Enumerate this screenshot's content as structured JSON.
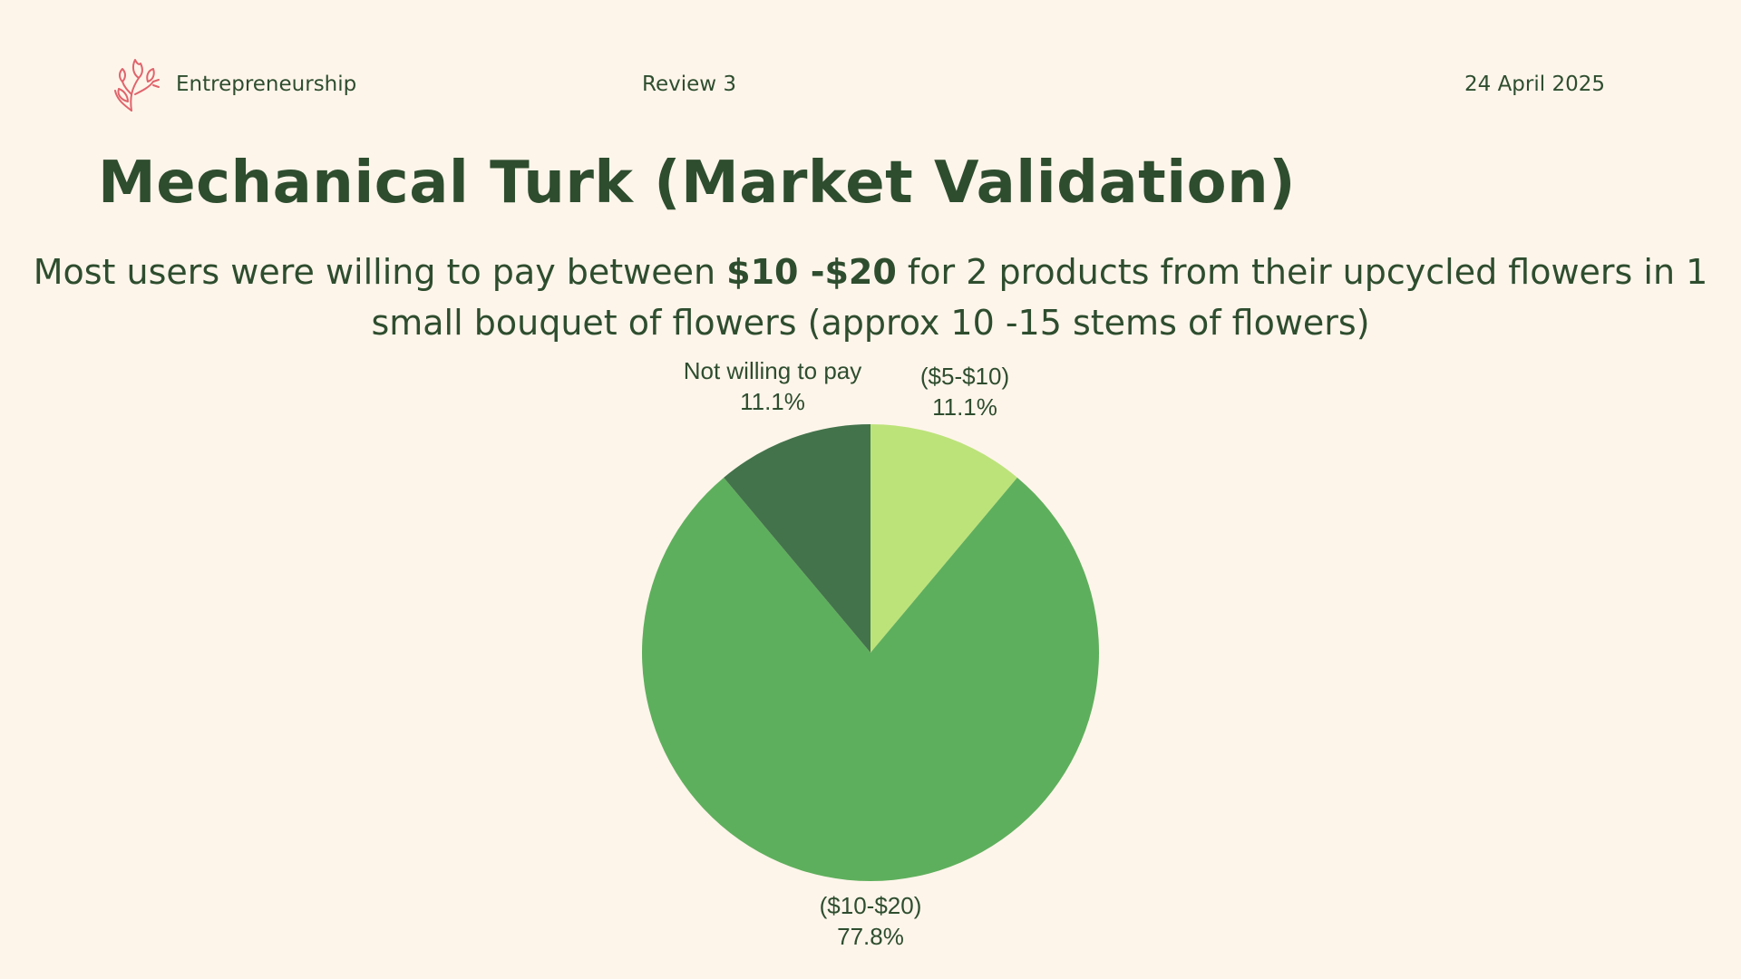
{
  "header": {
    "brand": "Entrepreneurship",
    "review": "Review 3",
    "date": "24 April 2025",
    "logo_icon": "tulip-flower-icon"
  },
  "title": "Mechanical Turk (Market Validation)",
  "subtitle": {
    "part1": "Most users were willing to pay between ",
    "bold": "$10 -$20",
    "part2": " for 2 products from their upcycled flowers in 1 small bouquet of flowers (approx 10 -15 stems of flowers)"
  },
  "colors": {
    "background": "#FEF5EA",
    "text": "#2E4D2F",
    "logo": "#E0646C"
  },
  "chart_data": {
    "type": "pie",
    "title": "",
    "slices": [
      {
        "label": "($5-$10)",
        "percent": 11.1,
        "percent_label": "11.1%",
        "color": "#BCE37A"
      },
      {
        "label": "($10-$20)",
        "percent": 77.8,
        "percent_label": "77.8%",
        "color": "#5EAF5D"
      },
      {
        "label": "Not willing to pay",
        "percent": 11.1,
        "percent_label": "11.1%",
        "color": "#43734B"
      }
    ],
    "start": "top",
    "direction": "clockwise",
    "legend": "none"
  }
}
